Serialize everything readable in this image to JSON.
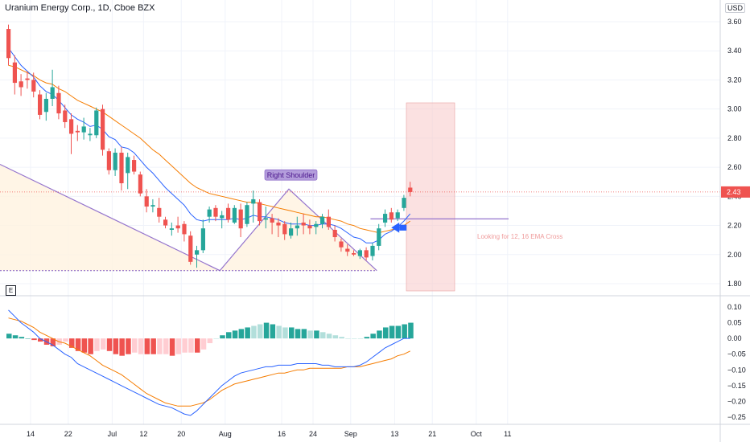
{
  "header": {
    "title": "Uranium Energy Corp., 1D, Cboe BZX",
    "currency": "USD"
  },
  "indicator_badge": "E",
  "colors": {
    "up": "#26a69a",
    "down": "#ef5350",
    "ema_fast": "#2962ff",
    "ema_slow": "#f57c00",
    "pattern": "#9575cd",
    "highlight": "#f8c8c8",
    "hist_up_strong": "#26a69a",
    "hist_up_weak": "#b2dfdb",
    "hist_down_strong": "#ef5350",
    "hist_down_weak": "#ffcdd2"
  },
  "chart_data": [
    {
      "type": "candlestick",
      "title": "Uranium Energy Corp., 1D, Cboe BZX",
      "y_ticks": [
        "3.60",
        "3.40",
        "3.20",
        "3.00",
        "2.80",
        "2.60",
        "2.40",
        "2.20",
        "2.00",
        "1.80"
      ],
      "ylim": [
        1.76,
        3.68
      ],
      "x_ticks": [
        {
          "label": "14",
          "i": 0
        },
        {
          "label": "22",
          "i": 6
        },
        {
          "label": "Jul",
          "i": 13
        },
        {
          "label": "12",
          "i": 18
        },
        {
          "label": "20",
          "i": 24
        },
        {
          "label": "Aug",
          "i": 31
        },
        {
          "label": "16",
          "i": 40
        },
        {
          "label": "24",
          "i": 45
        },
        {
          "label": "Sep",
          "i": 51
        },
        {
          "label": "13",
          "i": 58
        },
        {
          "label": "21",
          "i": 64
        },
        {
          "label": "Oct",
          "i": 71
        },
        {
          "label": "11",
          "i": 76
        }
      ],
      "last_price": "2.43",
      "candles": [
        {
          "o": 3.55,
          "h": 3.58,
          "l": 3.3,
          "c": 3.35
        },
        {
          "o": 3.32,
          "h": 3.37,
          "l": 3.1,
          "c": 3.18
        },
        {
          "o": 3.19,
          "h": 3.24,
          "l": 3.09,
          "c": 3.15
        },
        {
          "o": 3.21,
          "h": 3.26,
          "l": 3.14,
          "c": 3.2
        },
        {
          "o": 3.2,
          "h": 3.25,
          "l": 3.08,
          "c": 3.12
        },
        {
          "o": 3.1,
          "h": 3.13,
          "l": 2.93,
          "c": 2.96
        },
        {
          "o": 2.98,
          "h": 3.11,
          "l": 2.92,
          "c": 3.07
        },
        {
          "o": 3.07,
          "h": 3.27,
          "l": 3.02,
          "c": 3.15
        },
        {
          "o": 3.11,
          "h": 3.16,
          "l": 2.93,
          "c": 2.97
        },
        {
          "o": 2.99,
          "h": 3.03,
          "l": 2.87,
          "c": 2.91
        },
        {
          "o": 2.93,
          "h": 2.97,
          "l": 2.69,
          "c": 2.83
        },
        {
          "o": 2.85,
          "h": 2.89,
          "l": 2.78,
          "c": 2.84
        },
        {
          "o": 2.84,
          "h": 2.94,
          "l": 2.79,
          "c": 2.88
        },
        {
          "o": 2.82,
          "h": 2.87,
          "l": 2.78,
          "c": 2.83
        },
        {
          "o": 2.82,
          "h": 3.01,
          "l": 2.8,
          "c": 2.99
        },
        {
          "o": 3.0,
          "h": 3.03,
          "l": 2.68,
          "c": 2.72
        },
        {
          "o": 2.71,
          "h": 2.73,
          "l": 2.55,
          "c": 2.58
        },
        {
          "o": 2.58,
          "h": 2.73,
          "l": 2.54,
          "c": 2.7
        },
        {
          "o": 2.7,
          "h": 2.74,
          "l": 2.44,
          "c": 2.49
        },
        {
          "o": 2.56,
          "h": 2.7,
          "l": 2.45,
          "c": 2.67
        },
        {
          "o": 2.65,
          "h": 2.68,
          "l": 2.55,
          "c": 2.57
        },
        {
          "o": 2.55,
          "h": 2.57,
          "l": 2.4,
          "c": 2.42
        },
        {
          "o": 2.4,
          "h": 2.45,
          "l": 2.29,
          "c": 2.33
        },
        {
          "o": 2.33,
          "h": 2.38,
          "l": 2.29,
          "c": 2.34
        },
        {
          "o": 2.32,
          "h": 2.39,
          "l": 2.22,
          "c": 2.26
        },
        {
          "o": 2.24,
          "h": 2.26,
          "l": 2.18,
          "c": 2.2
        },
        {
          "o": 2.17,
          "h": 2.22,
          "l": 2.13,
          "c": 2.18
        },
        {
          "o": 2.2,
          "h": 2.26,
          "l": 2.15,
          "c": 2.18
        },
        {
          "o": 2.21,
          "h": 2.23,
          "l": 2.09,
          "c": 2.14
        },
        {
          "o": 2.13,
          "h": 2.16,
          "l": 1.93,
          "c": 1.95
        },
        {
          "o": 2.0,
          "h": 2.06,
          "l": 1.91,
          "c": 2.03
        },
        {
          "o": 2.03,
          "h": 2.24,
          "l": 2.01,
          "c": 2.18
        },
        {
          "o": 2.26,
          "h": 2.33,
          "l": 2.22,
          "c": 2.31
        },
        {
          "o": 2.32,
          "h": 2.34,
          "l": 2.23,
          "c": 2.26
        },
        {
          "o": 2.25,
          "h": 2.3,
          "l": 2.18,
          "c": 2.27
        },
        {
          "o": 2.32,
          "h": 2.35,
          "l": 2.22,
          "c": 2.24
        },
        {
          "o": 2.22,
          "h": 2.34,
          "l": 2.21,
          "c": 2.32
        },
        {
          "o": 2.31,
          "h": 2.35,
          "l": 2.12,
          "c": 2.18
        },
        {
          "o": 2.21,
          "h": 2.36,
          "l": 2.19,
          "c": 2.34
        },
        {
          "o": 2.35,
          "h": 2.44,
          "l": 2.22,
          "c": 2.38
        },
        {
          "o": 2.36,
          "h": 2.38,
          "l": 2.2,
          "c": 2.23
        },
        {
          "o": 2.24,
          "h": 2.33,
          "l": 2.18,
          "c": 2.25
        },
        {
          "o": 2.25,
          "h": 2.28,
          "l": 2.14,
          "c": 2.22
        },
        {
          "o": 2.22,
          "h": 2.25,
          "l": 2.12,
          "c": 2.2
        },
        {
          "o": 2.21,
          "h": 2.23,
          "l": 2.1,
          "c": 2.14
        },
        {
          "o": 2.13,
          "h": 2.22,
          "l": 2.11,
          "c": 2.18
        },
        {
          "o": 2.18,
          "h": 2.26,
          "l": 2.13,
          "c": 2.2
        },
        {
          "o": 2.22,
          "h": 2.28,
          "l": 2.14,
          "c": 2.2
        },
        {
          "o": 2.2,
          "h": 2.24,
          "l": 2.14,
          "c": 2.18
        },
        {
          "o": 2.19,
          "h": 2.23,
          "l": 2.14,
          "c": 2.21
        },
        {
          "o": 2.21,
          "h": 2.28,
          "l": 2.18,
          "c": 2.26
        },
        {
          "o": 2.26,
          "h": 2.31,
          "l": 2.17,
          "c": 2.19
        },
        {
          "o": 2.17,
          "h": 2.2,
          "l": 2.09,
          "c": 2.12
        },
        {
          "o": 2.09,
          "h": 2.11,
          "l": 2.02,
          "c": 2.05
        },
        {
          "o": 2.04,
          "h": 2.07,
          "l": 1.99,
          "c": 2.02
        },
        {
          "o": 2.01,
          "h": 2.03,
          "l": 1.99,
          "c": 2.0
        },
        {
          "o": 1.99,
          "h": 2.04,
          "l": 1.97,
          "c": 2.03
        },
        {
          "o": 2.03,
          "h": 2.05,
          "l": 1.96,
          "c": 1.98
        },
        {
          "o": 1.99,
          "h": 2.08,
          "l": 1.96,
          "c": 2.06
        },
        {
          "o": 2.06,
          "h": 2.21,
          "l": 2.03,
          "c": 2.18
        },
        {
          "o": 2.22,
          "h": 2.31,
          "l": 2.19,
          "c": 2.28
        },
        {
          "o": 2.29,
          "h": 2.32,
          "l": 2.22,
          "c": 2.24
        },
        {
          "o": 2.25,
          "h": 2.31,
          "l": 2.23,
          "c": 2.29
        },
        {
          "o": 2.32,
          "h": 2.41,
          "l": 2.3,
          "c": 2.39
        },
        {
          "o": 2.46,
          "h": 2.5,
          "l": 2.4,
          "c": 2.43
        }
      ],
      "ema_fast": [
        3.42,
        3.36,
        3.3,
        3.26,
        3.22,
        3.16,
        3.12,
        3.1,
        3.06,
        3.01,
        2.96,
        2.93,
        2.91,
        2.88,
        2.89,
        2.86,
        2.81,
        2.79,
        2.74,
        2.73,
        2.7,
        2.65,
        2.6,
        2.56,
        2.51,
        2.46,
        2.42,
        2.38,
        2.34,
        2.28,
        2.24,
        2.23,
        2.24,
        2.24,
        2.24,
        2.24,
        2.25,
        2.24,
        2.25,
        2.27,
        2.26,
        2.26,
        2.25,
        2.24,
        2.22,
        2.21,
        2.21,
        2.21,
        2.2,
        2.2,
        2.21,
        2.21,
        2.2,
        2.18,
        2.15,
        2.12,
        2.11,
        2.08,
        2.08,
        2.1,
        2.14,
        2.16,
        2.19,
        2.23,
        2.28
      ],
      "ema_slow": [
        3.3,
        3.29,
        3.27,
        3.25,
        3.23,
        3.2,
        3.18,
        3.17,
        3.14,
        3.12,
        3.09,
        3.06,
        3.04,
        3.02,
        3.0,
        2.98,
        2.95,
        2.92,
        2.89,
        2.86,
        2.83,
        2.8,
        2.76,
        2.72,
        2.69,
        2.65,
        2.61,
        2.57,
        2.53,
        2.49,
        2.46,
        2.44,
        2.42,
        2.41,
        2.4,
        2.39,
        2.38,
        2.37,
        2.36,
        2.36,
        2.35,
        2.34,
        2.33,
        2.32,
        2.31,
        2.3,
        2.29,
        2.28,
        2.27,
        2.26,
        2.26,
        2.25,
        2.24,
        2.23,
        2.21,
        2.2,
        2.18,
        2.17,
        2.16,
        2.15,
        2.16,
        2.17,
        2.18,
        2.2,
        2.23
      ],
      "annotations": {
        "right_shoulder_label": "Right Shoulder",
        "cross_note": "Looking for 12, 16 EMA Cross"
      }
    },
    {
      "type": "histogram+lines",
      "y_ticks": [
        "0.10",
        "0.05",
        "0.00",
        "−0.05",
        "−0.10",
        "−0.15",
        "−0.20",
        "−0.25"
      ],
      "ylim": [
        -0.27,
        0.11
      ],
      "histogram": [
        0.015,
        0.01,
        0.005,
        0,
        -0.005,
        -0.01,
        -0.02,
        -0.025,
        -0.02,
        -0.01,
        -0.03,
        -0.04,
        -0.045,
        -0.05,
        -0.04,
        -0.035,
        -0.04,
        -0.05,
        -0.055,
        -0.05,
        -0.045,
        -0.05,
        -0.05,
        -0.05,
        -0.05,
        -0.05,
        -0.055,
        -0.05,
        -0.045,
        -0.045,
        -0.045,
        -0.035,
        -0.015,
        0.0,
        0.01,
        0.02,
        0.025,
        0.03,
        0.035,
        0.04,
        0.045,
        0.05,
        0.045,
        0.04,
        0.035,
        0.035,
        0.03,
        0.03,
        0.025,
        0.025,
        0.02,
        0.015,
        0.01,
        0.005,
        0.0,
        0.0,
        0.0,
        0.005,
        0.015,
        0.025,
        0.035,
        0.04,
        0.04,
        0.045,
        0.05
      ],
      "hist_strength": [
        1,
        1,
        1,
        1,
        1,
        1,
        1,
        1,
        0,
        0,
        1,
        1,
        1,
        1,
        0,
        0,
        1,
        1,
        1,
        1,
        0,
        0,
        1,
        1,
        0,
        0,
        1,
        0,
        0,
        0,
        1,
        0,
        0,
        0,
        1,
        1,
        1,
        1,
        1,
        0,
        0,
        1,
        1,
        0,
        0,
        1,
        1,
        1,
        0,
        1,
        0,
        0,
        0,
        0,
        0,
        0,
        0,
        1,
        1,
        1,
        1,
        1,
        1,
        1,
        1
      ],
      "line_fast": [
        0.09,
        0.07,
        0.05,
        0.035,
        0.02,
        0.0,
        -0.01,
        -0.02,
        -0.035,
        -0.05,
        -0.06,
        -0.08,
        -0.09,
        -0.1,
        -0.11,
        -0.12,
        -0.13,
        -0.14,
        -0.15,
        -0.16,
        -0.17,
        -0.18,
        -0.19,
        -0.2,
        -0.21,
        -0.215,
        -0.22,
        -0.23,
        -0.24,
        -0.245,
        -0.23,
        -0.21,
        -0.19,
        -0.17,
        -0.15,
        -0.135,
        -0.12,
        -0.11,
        -0.105,
        -0.1,
        -0.095,
        -0.09,
        -0.09,
        -0.085,
        -0.085,
        -0.085,
        -0.08,
        -0.08,
        -0.08,
        -0.08,
        -0.085,
        -0.085,
        -0.09,
        -0.09,
        -0.09,
        -0.09,
        -0.085,
        -0.075,
        -0.06,
        -0.045,
        -0.03,
        -0.02,
        -0.01,
        0.0,
        0.0
      ],
      "line_slow": [
        0.065,
        0.06,
        0.055,
        0.045,
        0.035,
        0.02,
        0.01,
        0.0,
        -0.01,
        -0.015,
        -0.025,
        -0.035,
        -0.045,
        -0.055,
        -0.07,
        -0.085,
        -0.095,
        -0.105,
        -0.115,
        -0.13,
        -0.145,
        -0.16,
        -0.175,
        -0.185,
        -0.195,
        -0.205,
        -0.21,
        -0.215,
        -0.215,
        -0.215,
        -0.21,
        -0.205,
        -0.195,
        -0.18,
        -0.165,
        -0.155,
        -0.145,
        -0.14,
        -0.135,
        -0.13,
        -0.125,
        -0.12,
        -0.115,
        -0.11,
        -0.11,
        -0.105,
        -0.1,
        -0.1,
        -0.095,
        -0.095,
        -0.095,
        -0.095,
        -0.095,
        -0.095,
        -0.09,
        -0.09,
        -0.09,
        -0.085,
        -0.08,
        -0.075,
        -0.07,
        -0.065,
        -0.055,
        -0.05,
        -0.04
      ]
    }
  ]
}
